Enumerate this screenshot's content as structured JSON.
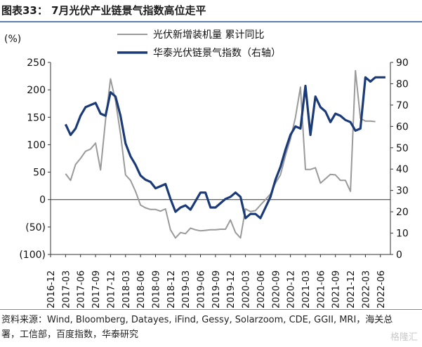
{
  "header": {
    "title": "图表33： 7月光伏产业链景气指数高位走平"
  },
  "source": {
    "text": "资料来源：Wind, Bloomberg, Datayes, iFind, Gessy, Solarzoom, CDE, GGII, MRI，海关总署，工信部，百度指数，华泰研究"
  },
  "watermark": {
    "text": "格隆汇"
  },
  "chart_data": {
    "type": "line",
    "left_axis_unit": "(%)",
    "left_axis": {
      "min": -100,
      "max": 250,
      "step": 50,
      "tick_labels": [
        "(100)",
        "(50)",
        "0",
        "50",
        "100",
        "150",
        "200",
        "250"
      ]
    },
    "right_axis": {
      "min": 0,
      "max": 90,
      "step": 10,
      "tick_labels": [
        "0",
        "10",
        "20",
        "30",
        "40",
        "50",
        "60",
        "70",
        "80",
        "90"
      ]
    },
    "x_tick_labels": [
      "2016-12",
      "2017-03",
      "2017-06",
      "2017-09",
      "2017-12",
      "2018-03",
      "2018-06",
      "2018-09",
      "2018-12",
      "2019-03",
      "2019-06",
      "2019-09",
      "2019-12",
      "2020-03",
      "2020-06",
      "2020-09",
      "2020-12",
      "2021-03",
      "2021-06",
      "2021-09",
      "2021-12",
      "2022-03",
      "2022-06"
    ],
    "legend_position": "top-center",
    "months": [
      "2017-03",
      "2017-04",
      "2017-05",
      "2017-06",
      "2017-07",
      "2017-08",
      "2017-09",
      "2017-10",
      "2017-11",
      "2017-12",
      "2018-01",
      "2018-02",
      "2018-03",
      "2018-04",
      "2018-05",
      "2018-06",
      "2018-07",
      "2018-08",
      "2018-09",
      "2018-10",
      "2018-11",
      "2018-12",
      "2019-01",
      "2019-02",
      "2019-03",
      "2019-04",
      "2019-05",
      "2019-06",
      "2019-07",
      "2019-08",
      "2019-09",
      "2019-10",
      "2019-11",
      "2019-12",
      "2020-01",
      "2020-02",
      "2020-03",
      "2020-04",
      "2020-05",
      "2020-06",
      "2020-07",
      "2020-08",
      "2020-09",
      "2020-10",
      "2020-11",
      "2020-12",
      "2021-01",
      "2021-02",
      "2021-03",
      "2021-04",
      "2021-05",
      "2021-06",
      "2021-07",
      "2021-08",
      "2021-09",
      "2021-10",
      "2021-11",
      "2021-12",
      "2022-01",
      "2022-02",
      "2022-03",
      "2022-04",
      "2022-05",
      "2022-06",
      "2022-07"
    ],
    "series": [
      {
        "name": "光伏新增装机量 累计同比",
        "axis": "left",
        "color": "#9a9a9a",
        "values": [
          47,
          35,
          64,
          75,
          88,
          92,
          103,
          54,
          145,
          220,
          180,
          120,
          45,
          35,
          15,
          -10,
          -15,
          -18,
          -18,
          -21,
          -17,
          -55,
          -70,
          -60,
          -62,
          -52,
          -55,
          -57,
          -56,
          -55,
          -55,
          -54,
          -54,
          -37,
          -60,
          -70,
          -17,
          -22,
          -20,
          -10,
          0,
          10,
          30,
          45,
          80,
          110,
          150,
          205,
          55,
          55,
          58,
          30,
          38,
          46,
          45,
          35,
          35,
          15,
          235,
          148,
          143,
          143,
          142,
          null,
          null
        ]
      },
      {
        "name": "华泰光伏链景气指数（右轴）",
        "axis": "right",
        "color": "#1a3a78",
        "values": [
          61,
          56,
          59,
          65,
          69,
          70,
          71,
          66,
          65,
          76,
          74,
          65,
          52,
          46,
          42,
          37,
          35,
          34,
          31,
          32,
          33,
          26,
          20,
          22,
          23,
          21,
          25,
          29,
          29,
          22,
          22,
          24,
          26,
          27,
          29,
          27,
          17,
          19,
          19,
          17,
          22,
          27,
          35,
          41,
          49,
          56,
          60,
          59,
          79,
          56,
          74,
          69,
          67,
          62,
          66,
          65,
          63,
          62,
          58,
          59,
          83,
          81,
          83,
          83,
          83
        ]
      }
    ]
  }
}
